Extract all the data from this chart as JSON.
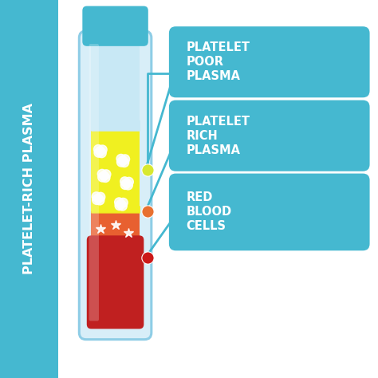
{
  "background_color": "#ffffff",
  "left_panel_color": "#45b8d0",
  "left_panel_text": "PLATELET-RICH PLASMA",
  "left_panel_text_color": "#ffffff",
  "tube_body_color": "#d8eef8",
  "tube_border_color": "#8ecde6",
  "tube_cap_color": "#45b8d0",
  "layer_clear": "#c8e8f5",
  "layer_yellow": "#f0f020",
  "layer_orange": "#e86030",
  "layer_red": "#c02020",
  "label_box_color": "#45b8d0",
  "label_text_color": "#ffffff",
  "labels": [
    "PLATELET\nPOOR\nPLASMA",
    "PLATELET\nRICH\nPLASMA",
    "RED\nBLOOD\nCELLS"
  ],
  "dot_colors": [
    "#d8e830",
    "#e87030",
    "#cc1818"
  ],
  "connector_color": "#45b8d0",
  "title_fontsize": 11.5,
  "label_fontsize": 10.5
}
